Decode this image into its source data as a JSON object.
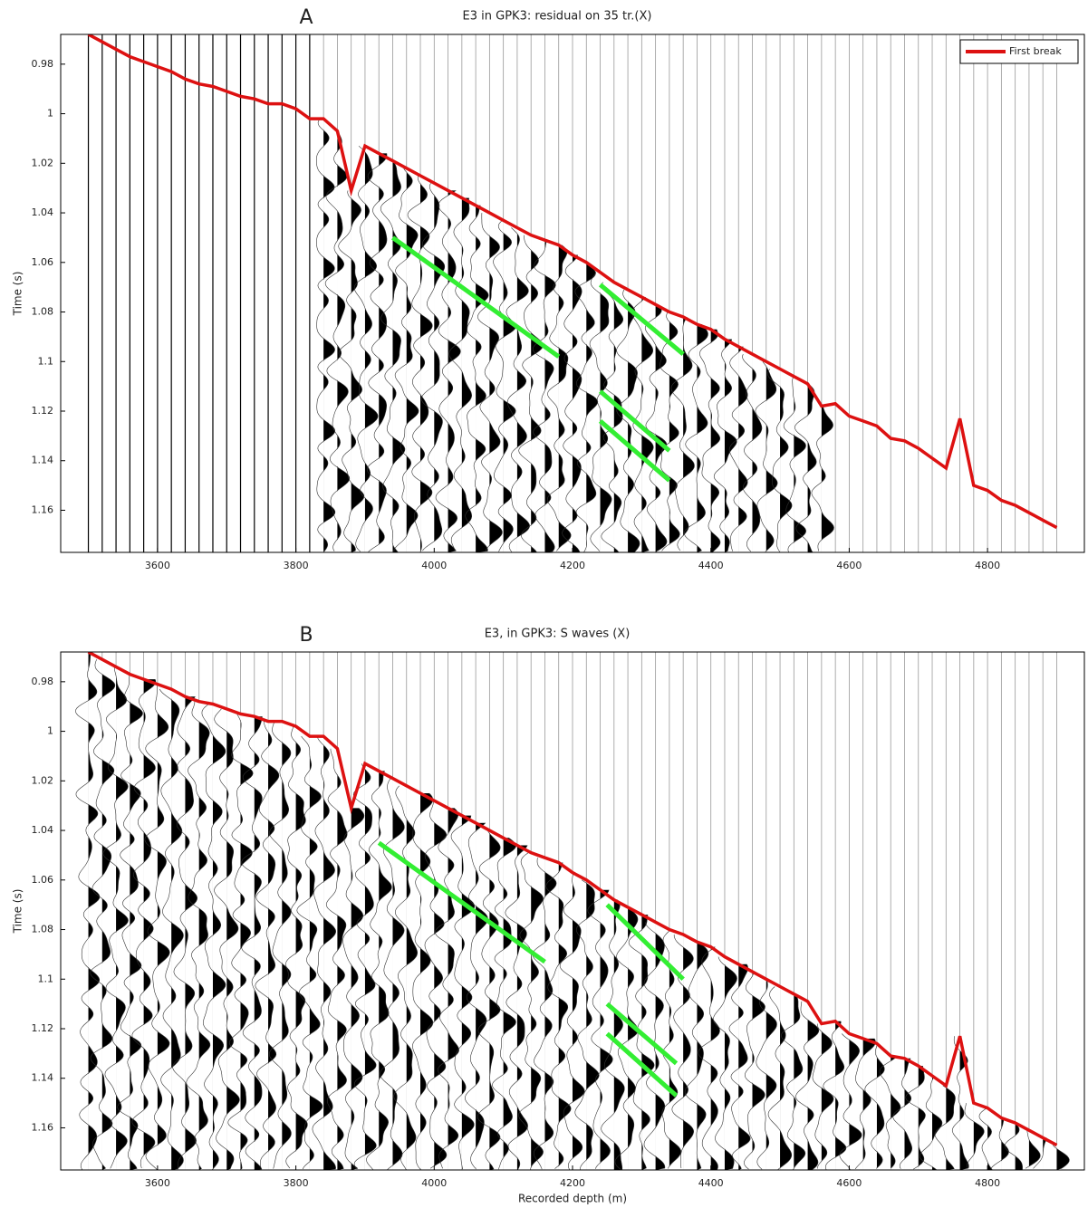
{
  "chart_data": [
    {
      "type": "line",
      "panel_label": "A",
      "title": "E3 in GPK3: residual on 35 tr.(X)",
      "y_label": "Time (s)",
      "xlim": [
        3460,
        4940
      ],
      "ylim": [
        1.177,
        0.968
      ],
      "xticks": [
        3600,
        3800,
        4000,
        4200,
        4400,
        4600,
        4800
      ],
      "yticks": [
        0.98,
        1,
        1.02,
        1.04,
        1.06,
        1.08,
        1.1,
        1.12,
        1.14,
        1.16
      ],
      "legend": "upper right",
      "series": [
        {
          "name": "First break",
          "color": "#dd1111",
          "x": [
            3500,
            3520,
            3540,
            3560,
            3580,
            3600,
            3620,
            3640,
            3660,
            3680,
            3700,
            3720,
            3740,
            3760,
            3780,
            3800,
            3820,
            3840,
            3860,
            3880,
            3900,
            3920,
            3940,
            3960,
            3980,
            4000,
            4020,
            4040,
            4060,
            4080,
            4100,
            4120,
            4140,
            4160,
            4180,
            4200,
            4220,
            4240,
            4260,
            4280,
            4300,
            4320,
            4340,
            4360,
            4380,
            4400,
            4420,
            4440,
            4460,
            4480,
            4500,
            4520,
            4540,
            4560,
            4580,
            4600,
            4620,
            4640,
            4660,
            4680,
            4700,
            4720,
            4740,
            4760,
            4780,
            4800,
            4820,
            4840,
            4860,
            4880,
            4900
          ],
          "values": [
            0.968,
            0.971,
            0.974,
            0.977,
            0.979,
            0.981,
            0.983,
            0.986,
            0.988,
            0.989,
            0.991,
            0.993,
            0.994,
            0.996,
            0.996,
            0.998,
            1.002,
            1.002,
            1.007,
            1.031,
            1.013,
            1.016,
            1.019,
            1.022,
            1.025,
            1.028,
            1.031,
            1.034,
            1.037,
            1.04,
            1.043,
            1.046,
            1.049,
            1.051,
            1.053,
            1.057,
            1.06,
            1.064,
            1.068,
            1.071,
            1.074,
            1.077,
            1.08,
            1.082,
            1.085,
            1.087,
            1.091,
            1.094,
            1.097,
            1.1,
            1.103,
            1.106,
            1.109,
            1.118,
            1.117,
            1.122,
            1.124,
            1.126,
            1.131,
            1.132,
            1.135,
            1.139,
            1.143,
            1.123,
            1.15,
            1.152,
            1.156,
            1.158,
            1.161,
            1.164,
            1.167
          ]
        }
      ],
      "annotation_lines": {
        "color": "#33ee33",
        "lines": [
          {
            "x": [
              3940,
              4180
            ],
            "y": [
              1.05,
              1.098
            ]
          },
          {
            "x": [
              4240,
              4360
            ],
            "y": [
              1.069,
              1.097
            ]
          },
          {
            "x": [
              4240,
              4340
            ],
            "y": [
              1.112,
              1.136
            ]
          },
          {
            "x": [
              4240,
              4340
            ],
            "y": [
              1.124,
              1.148
            ]
          }
        ]
      }
    },
    {
      "type": "line",
      "panel_label": "B",
      "title": "E3, in GPK3: S waves (X)",
      "y_label": "Time (s)",
      "x_label": "Recorded depth (m)",
      "xlim": [
        3460,
        4940
      ],
      "ylim": [
        1.177,
        0.968
      ],
      "xticks": [
        3600,
        3800,
        4000,
        4200,
        4400,
        4600,
        4800
      ],
      "yticks": [
        0.98,
        1,
        1.02,
        1.04,
        1.06,
        1.08,
        1.1,
        1.12,
        1.14,
        1.16
      ],
      "series": [
        {
          "color": "#dd1111",
          "x": [
            3500,
            3520,
            3540,
            3560,
            3580,
            3600,
            3620,
            3640,
            3660,
            3680,
            3700,
            3720,
            3740,
            3760,
            3780,
            3800,
            3820,
            3840,
            3860,
            3880,
            3900,
            3920,
            3940,
            3960,
            3980,
            4000,
            4020,
            4040,
            4060,
            4080,
            4100,
            4120,
            4140,
            4160,
            4180,
            4200,
            4220,
            4240,
            4260,
            4280,
            4300,
            4320,
            4340,
            4360,
            4380,
            4400,
            4420,
            4440,
            4460,
            4480,
            4500,
            4520,
            4540,
            4560,
            4580,
            4600,
            4620,
            4640,
            4660,
            4680,
            4700,
            4720,
            4740,
            4760,
            4780,
            4800,
            4820,
            4840,
            4860,
            4880,
            4900
          ],
          "values": [
            0.968,
            0.971,
            0.974,
            0.977,
            0.979,
            0.981,
            0.983,
            0.986,
            0.988,
            0.989,
            0.991,
            0.993,
            0.994,
            0.996,
            0.996,
            0.998,
            1.002,
            1.002,
            1.007,
            1.031,
            1.013,
            1.016,
            1.019,
            1.022,
            1.025,
            1.028,
            1.031,
            1.034,
            1.037,
            1.04,
            1.043,
            1.046,
            1.049,
            1.051,
            1.053,
            1.057,
            1.06,
            1.064,
            1.068,
            1.071,
            1.074,
            1.077,
            1.08,
            1.082,
            1.085,
            1.087,
            1.091,
            1.094,
            1.097,
            1.1,
            1.103,
            1.106,
            1.109,
            1.118,
            1.117,
            1.122,
            1.124,
            1.126,
            1.131,
            1.132,
            1.135,
            1.139,
            1.143,
            1.123,
            1.15,
            1.152,
            1.156,
            1.158,
            1.161,
            1.164,
            1.167
          ]
        }
      ],
      "annotation_lines": {
        "color": "#33ee33",
        "lines": [
          {
            "x": [
              3920,
              4160
            ],
            "y": [
              1.045,
              1.093
            ]
          },
          {
            "x": [
              4250,
              4360
            ],
            "y": [
              1.07,
              1.1
            ]
          },
          {
            "x": [
              4250,
              4350
            ],
            "y": [
              1.11,
              1.134
            ]
          },
          {
            "x": [
              4250,
              4350
            ],
            "y": [
              1.122,
              1.147
            ]
          }
        ]
      }
    }
  ]
}
